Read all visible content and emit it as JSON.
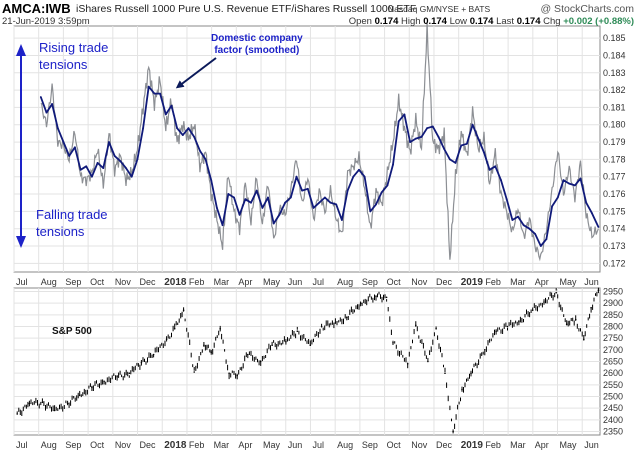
{
  "header": {
    "symbol": "AMCA:IWB",
    "description": "iShares Russell 1000 Pure U.S. Revenue ETF/iShares Russell 1000 ETF",
    "exchange": "Nasdaq GM/NYSE + BATS",
    "date": "21-Jun-2019 3:59pm",
    "site": "@ StockCharts.com",
    "ohlc": {
      "open_label": "Open",
      "open": "0.174",
      "high_label": "High",
      "high": "0.174",
      "low_label": "Low",
      "low": "0.174",
      "last_label": "Last",
      "last": "0.174",
      "chg_label": "Chg",
      "chg": "+0.002 (+0.88%)",
      "chg_color": "#2e8b57"
    }
  },
  "annotations": {
    "rising_line1": "Rising trade",
    "rising_line2": "tensions",
    "falling_line1": "Falling trade",
    "falling_line2": "tensions",
    "domestic_line1": "Domestic company",
    "domestic_line2": "factor (smoothed)",
    "sp_label": "S&P 500"
  },
  "colors": {
    "annotation_blue": "#1d22c8",
    "raw_series": "#8c8f94",
    "smoothed_series": "#101a7a",
    "sp_series": "#000000",
    "grid": "#e3e3e3"
  },
  "chart_data": [
    {
      "type": "line",
      "x_ticks": [
        "Jul",
        "Aug",
        "Sep",
        "Oct",
        "Nov",
        "Dec",
        "2018",
        "Feb",
        "Mar",
        "Apr",
        "May",
        "Jun",
        "Jul",
        "Aug",
        "Sep",
        "Oct",
        "Nov",
        "Dec",
        "2019",
        "Feb",
        "Mar",
        "Apr",
        "May",
        "Jun"
      ],
      "y_ticks": [
        "0.172",
        "0.173",
        "0.174",
        "0.175",
        "0.176",
        "0.177",
        "0.178",
        "0.179",
        "0.180",
        "0.181",
        "0.182",
        "0.183",
        "0.184",
        "0.185"
      ],
      "ylim": [
        0.1715,
        0.1857
      ],
      "x_range_months": [
        "2017-07",
        "2019-06"
      ],
      "grid": true,
      "series": [
        {
          "x": [
            "2017-08-03",
            "2017-08-10",
            "2017-08-17",
            "2017-08-24",
            "2017-08-31",
            "2017-09-07",
            "2017-09-14",
            "2017-09-21",
            "2017-09-28",
            "2017-10-05",
            "2017-10-12",
            "2017-10-19",
            "2017-10-26",
            "2017-11-02",
            "2017-11-09",
            "2017-11-16",
            "2017-11-23",
            "2017-11-30",
            "2017-12-07",
            "2017-12-14",
            "2017-12-21",
            "2017-12-28",
            "2018-01-04",
            "2018-01-11",
            "2018-01-18",
            "2018-01-25",
            "2018-02-01",
            "2018-02-08",
            "2018-02-15",
            "2018-02-22",
            "2018-03-01",
            "2018-03-08",
            "2018-03-15",
            "2018-03-22",
            "2018-03-29",
            "2018-04-05",
            "2018-04-12",
            "2018-04-19",
            "2018-04-26",
            "2018-05-03",
            "2018-05-10",
            "2018-05-17",
            "2018-05-24",
            "2018-05-31",
            "2018-06-07",
            "2018-06-14",
            "2018-06-21",
            "2018-06-28",
            "2018-07-05",
            "2018-07-12",
            "2018-07-19",
            "2018-07-26",
            "2018-08-02",
            "2018-08-09",
            "2018-08-16",
            "2018-08-23",
            "2018-08-30",
            "2018-09-06",
            "2018-09-13",
            "2018-09-20",
            "2018-09-27",
            "2018-10-04",
            "2018-10-11",
            "2018-10-18",
            "2018-10-25",
            "2018-11-01",
            "2018-11-08",
            "2018-11-15",
            "2018-11-22",
            "2018-11-29",
            "2018-12-06",
            "2018-12-13",
            "2018-12-20",
            "2018-12-27",
            "2019-01-03",
            "2019-01-10",
            "2019-01-17",
            "2019-01-24",
            "2019-01-31",
            "2019-02-07",
            "2019-02-14",
            "2019-02-21",
            "2019-02-28",
            "2019-03-07",
            "2019-03-14",
            "2019-03-21",
            "2019-03-28",
            "2019-04-04",
            "2019-04-11",
            "2019-04-18",
            "2019-04-25",
            "2019-05-02",
            "2019-05-09",
            "2019-05-16",
            "2019-05-23",
            "2019-05-30",
            "2019-06-06",
            "2019-06-13",
            "2019-06-21"
          ],
          "values": [
            0.1816,
            0.1807,
            0.1812,
            0.1798,
            0.179,
            0.1782,
            0.1787,
            0.1774,
            0.1776,
            0.177,
            0.1778,
            0.1775,
            0.179,
            0.1782,
            0.1779,
            0.1775,
            0.177,
            0.178,
            0.1798,
            0.1822,
            0.1818,
            0.1818,
            0.1806,
            0.1811,
            0.1798,
            0.1794,
            0.1798,
            0.1793,
            0.1785,
            0.178,
            0.1768,
            0.1752,
            0.1742,
            0.176,
            0.1758,
            0.1748,
            0.1757,
            0.1755,
            0.1762,
            0.1752,
            0.1758,
            0.1743,
            0.1748,
            0.1755,
            0.1758,
            0.177,
            0.1762,
            0.1763,
            0.1752,
            0.1755,
            0.1758,
            0.1755,
            0.1754,
            0.1745,
            0.1762,
            0.177,
            0.1774,
            0.177,
            0.175,
            0.1754,
            0.1761,
            0.1765,
            0.1777,
            0.1802,
            0.1806,
            0.179,
            0.1792,
            0.1793,
            0.1798,
            0.1799,
            0.1793,
            0.1786,
            0.178,
            0.1778,
            0.1788,
            0.1789,
            0.18,
            0.1792,
            0.1784,
            0.1774,
            0.1776,
            0.1768,
            0.1757,
            0.1745,
            0.1747,
            0.1742,
            0.174,
            0.1737,
            0.173,
            0.1734,
            0.1753,
            0.1758,
            0.1768,
            0.1766,
            0.1765,
            0.1769,
            0.1755,
            0.1749,
            0.1741
          ],
          "raw_noise_values": [
            0.1812,
            0.18,
            0.1822,
            0.179,
            0.1788,
            0.178,
            0.1796,
            0.177,
            0.1768,
            0.1772,
            0.1786,
            0.1765,
            0.1795,
            0.1774,
            0.1782,
            0.1768,
            0.1772,
            0.1786,
            0.181,
            0.1833,
            0.1812,
            0.1826,
            0.1798,
            0.1814,
            0.179,
            0.18,
            0.1792,
            0.18,
            0.1776,
            0.1784,
            0.176,
            0.1745,
            0.173,
            0.1772,
            0.175,
            0.174,
            0.1766,
            0.1744,
            0.177,
            0.1742,
            0.1767,
            0.1733,
            0.1752,
            0.1748,
            0.1762,
            0.1781,
            0.1754,
            0.177,
            0.1745,
            0.1762,
            0.175,
            0.1762,
            0.1746,
            0.1736,
            0.1772,
            0.1776,
            0.1781,
            0.1764,
            0.174,
            0.1762,
            0.1754,
            0.1772,
            0.179,
            0.1814,
            0.1798,
            0.1784,
            0.1803,
            0.1786,
            0.1855,
            0.179,
            0.1786,
            0.1795,
            0.1722,
            0.177,
            0.1796,
            0.1782,
            0.1808,
            0.1786,
            0.1792,
            0.1766,
            0.1784,
            0.176,
            0.175,
            0.1738,
            0.1752,
            0.1735,
            0.1746,
            0.173,
            0.1723,
            0.174,
            0.1762,
            0.1785,
            0.176,
            0.1775,
            0.1758,
            0.1778,
            0.1748,
            0.1736,
            0.174
          ]
        }
      ]
    },
    {
      "type": "line",
      "x_ticks": [
        "Jul",
        "Aug",
        "Sep",
        "Oct",
        "Nov",
        "Dec",
        "2018",
        "Feb",
        "Mar",
        "Apr",
        "May",
        "Jun",
        "Jul",
        "Aug",
        "Sep",
        "Oct",
        "Nov",
        "Dec",
        "2019",
        "Feb",
        "Mar",
        "Apr",
        "May",
        "Jun"
      ],
      "y_ticks": [
        "2350",
        "2400",
        "2450",
        "2500",
        "2550",
        "2600",
        "2650",
        "2700",
        "2750",
        "2800",
        "2850",
        "2900",
        "2950"
      ],
      "ylim": [
        2335,
        2965
      ],
      "grid": true,
      "series": [
        {
          "name": "S&P 500",
          "x": [
            "2017-07-05",
            "2017-07-20",
            "2017-08-05",
            "2017-08-20",
            "2017-09-05",
            "2017-09-20",
            "2017-10-05",
            "2017-10-20",
            "2017-11-05",
            "2017-11-20",
            "2017-12-05",
            "2017-12-20",
            "2018-01-05",
            "2018-01-15",
            "2018-01-26",
            "2018-02-08",
            "2018-02-20",
            "2018-03-01",
            "2018-03-12",
            "2018-03-23",
            "2018-04-02",
            "2018-04-15",
            "2018-05-01",
            "2018-05-15",
            "2018-06-01",
            "2018-06-15",
            "2018-07-01",
            "2018-07-15",
            "2018-08-01",
            "2018-08-15",
            "2018-09-01",
            "2018-09-20",
            "2018-10-03",
            "2018-10-11",
            "2018-10-29",
            "2018-11-08",
            "2018-11-23",
            "2018-12-03",
            "2018-12-14",
            "2018-12-24",
            "2019-01-04",
            "2019-01-15",
            "2019-02-01",
            "2019-02-15",
            "2019-03-01",
            "2019-03-15",
            "2019-04-01",
            "2019-04-15",
            "2019-04-30",
            "2019-05-13",
            "2019-05-24",
            "2019-06-03",
            "2019-06-12",
            "2019-06-21"
          ],
          "values": [
            2425,
            2470,
            2475,
            2440,
            2470,
            2505,
            2540,
            2565,
            2585,
            2600,
            2645,
            2680,
            2745,
            2790,
            2870,
            2605,
            2720,
            2690,
            2790,
            2600,
            2590,
            2680,
            2650,
            2720,
            2735,
            2780,
            2720,
            2800,
            2815,
            2840,
            2900,
            2930,
            2925,
            2730,
            2640,
            2805,
            2650,
            2790,
            2600,
            2350,
            2530,
            2600,
            2700,
            2780,
            2800,
            2820,
            2870,
            2905,
            2945,
            2810,
            2830,
            2745,
            2880,
            2955
          ]
        }
      ]
    }
  ]
}
